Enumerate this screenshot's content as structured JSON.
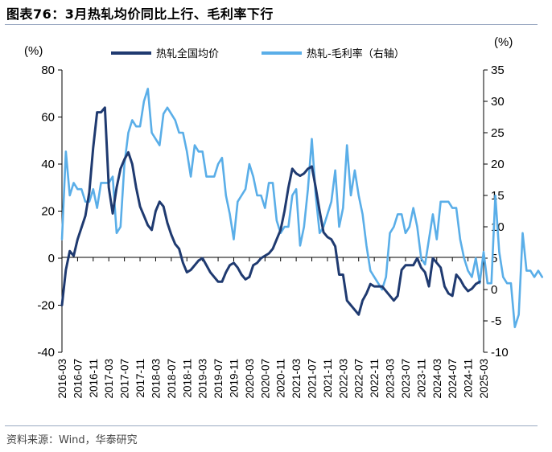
{
  "header": {
    "title": "图表76：3月热轧均价同比上行、毛利率下行"
  },
  "footer": {
    "source": "资料来源：Wind，华泰研究"
  },
  "chart_data": {
    "type": "line",
    "title": "图表76：3月热轧均价同比上行、毛利率下行",
    "left_unit": "(%)",
    "right_unit": "(%)",
    "left_axis": {
      "min": -40,
      "max": 80,
      "ticks": [
        -40,
        -20,
        0,
        20,
        40,
        60,
        80
      ]
    },
    "right_axis": {
      "min": -10,
      "max": 35,
      "ticks": [
        -10,
        -5,
        0,
        5,
        10,
        15,
        20,
        25,
        30,
        35
      ]
    },
    "x_ticks": [
      "2016-03",
      "2016-07",
      "2016-11",
      "2017-03",
      "2017-07",
      "2017-11",
      "2018-03",
      "2018-07",
      "2018-11",
      "2019-03",
      "2019-07",
      "2019-11",
      "2020-03",
      "2020-07",
      "2020-11",
      "2021-03",
      "2021-07",
      "2021-11",
      "2022-03",
      "2022-07",
      "2022-11",
      "2023-03",
      "2023-07",
      "2023-11",
      "2024-03",
      "2024-07",
      "2024-11",
      "2025-03"
    ],
    "legend_position": "top",
    "grid": false,
    "series": [
      {
        "name": "热轧全国均价",
        "axis": "left",
        "color": "#1f3a70",
        "start": "2016-03",
        "values": [
          -20,
          -5,
          3,
          1,
          8,
          13,
          18,
          28,
          47,
          62,
          62,
          64,
          30,
          19,
          30,
          38,
          42,
          45,
          40,
          30,
          22,
          18,
          14,
          12,
          20,
          24,
          22,
          15,
          10,
          6,
          4,
          -2,
          -6,
          -5,
          -3,
          -1,
          0,
          -3,
          -6,
          -8,
          -10,
          -10,
          -6,
          -3,
          -2,
          -4,
          -7,
          -9,
          -8,
          -3,
          -2,
          0,
          1,
          2,
          4,
          8,
          12,
          20,
          30,
          38,
          36,
          35,
          36,
          38,
          39,
          30,
          20,
          11,
          9,
          8,
          5,
          -7,
          -7,
          -18,
          -20,
          -22,
          -24,
          -18,
          -15,
          -11,
          -12,
          -12,
          -12,
          -14,
          -16,
          -18,
          -16,
          -5,
          -3,
          -3,
          -3,
          0,
          -4,
          -6,
          -12,
          0,
          -2,
          -4,
          -12,
          -15,
          -16,
          -7,
          -9,
          -12,
          -14,
          -13,
          -11,
          -10
        ]
      },
      {
        "name": "热轧-毛利率（右轴）",
        "axis": "right",
        "color": "#5aaee8",
        "start": "2016-03",
        "values": [
          8,
          22,
          15,
          17,
          16,
          16,
          14,
          14,
          16,
          13,
          17,
          17,
          17,
          18,
          9,
          10,
          20,
          25,
          27,
          26,
          26,
          30,
          32,
          25,
          24,
          23,
          28,
          29,
          28,
          27,
          25,
          25,
          22,
          18,
          23,
          22,
          22,
          18,
          18,
          18,
          20,
          21,
          15,
          12,
          8,
          14,
          15,
          16,
          20,
          18,
          15,
          15,
          13,
          17,
          17,
          11,
          9,
          10,
          10,
          15,
          16,
          7,
          10,
          16,
          24,
          15,
          9,
          10,
          12,
          14,
          19,
          10,
          13,
          23,
          15,
          19,
          15,
          12,
          7,
          3,
          2,
          1,
          0,
          2,
          9,
          10,
          12,
          12,
          9,
          10,
          13,
          10,
          5,
          4,
          8,
          12,
          8,
          14,
          14,
          14,
          13,
          13,
          8,
          5,
          3,
          2,
          5,
          1,
          6,
          1,
          1,
          15,
          6,
          2,
          1,
          1,
          -6,
          -4,
          9,
          3,
          3,
          2,
          3,
          2
        ]
      }
    ]
  }
}
